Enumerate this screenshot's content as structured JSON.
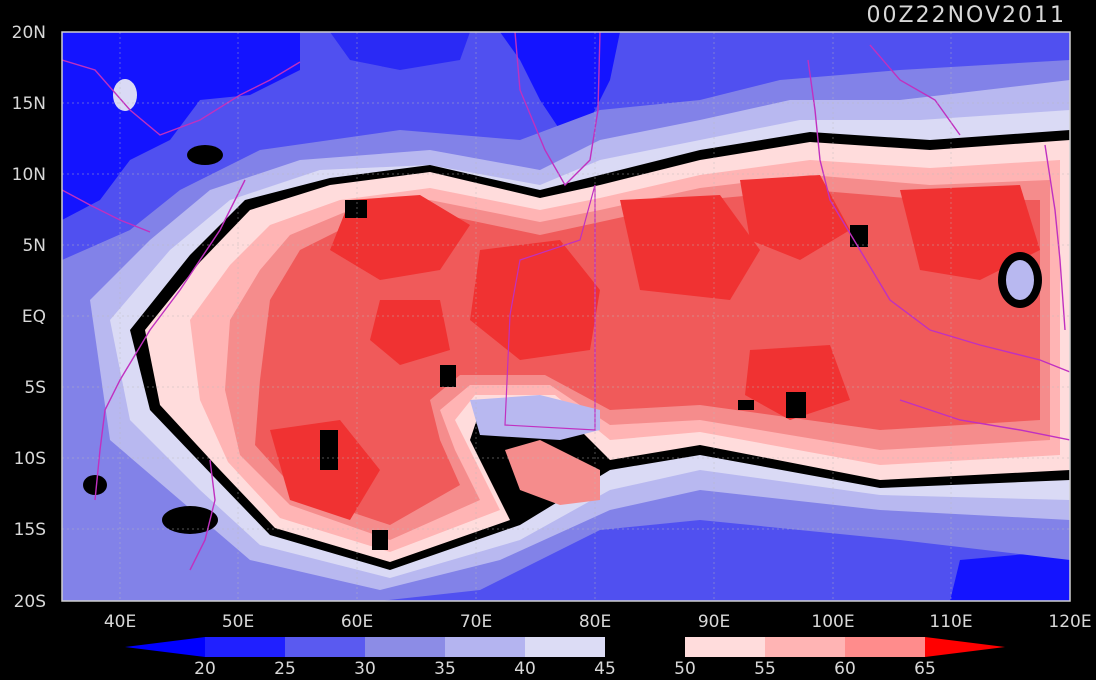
{
  "time_label": "00Z22NOV2011",
  "lat_labels": [
    "20N",
    "15N",
    "10N",
    "5N",
    "EQ",
    "5S",
    "10S",
    "15S",
    "20S"
  ],
  "lon_labels": [
    "40E",
    "50E",
    "60E",
    "70E",
    "80E",
    "90E",
    "100E",
    "110E",
    "120E"
  ],
  "colorbar": {
    "levels": [
      "20",
      "25",
      "30",
      "35",
      "40",
      "45",
      "50",
      "55",
      "60",
      "65"
    ],
    "colors": [
      "#0000ff",
      "#2020ff",
      "#5a5af0",
      "#8c8ce6",
      "#b4b4f0",
      "#dcdcf5",
      "#000000",
      "#ffdcdc",
      "#ffb4b4",
      "#ff8c8c",
      "#f05a5a",
      "#f03232",
      "#ff0000"
    ]
  },
  "field_colors": {
    "deep_blue": "#1414ff",
    "blue": "#5050f0",
    "mid_blue": "#8282e8",
    "light_blue": "#b8b8f0",
    "pale_blue": "#dadaf5",
    "black": "#000000",
    "pale_red": "#ffdcdc",
    "light_red": "#ffb4b4",
    "mid_red": "#f58c8c",
    "red": "#f05a5a",
    "deep_red": "#f03232",
    "coast": "#c030c0"
  }
}
